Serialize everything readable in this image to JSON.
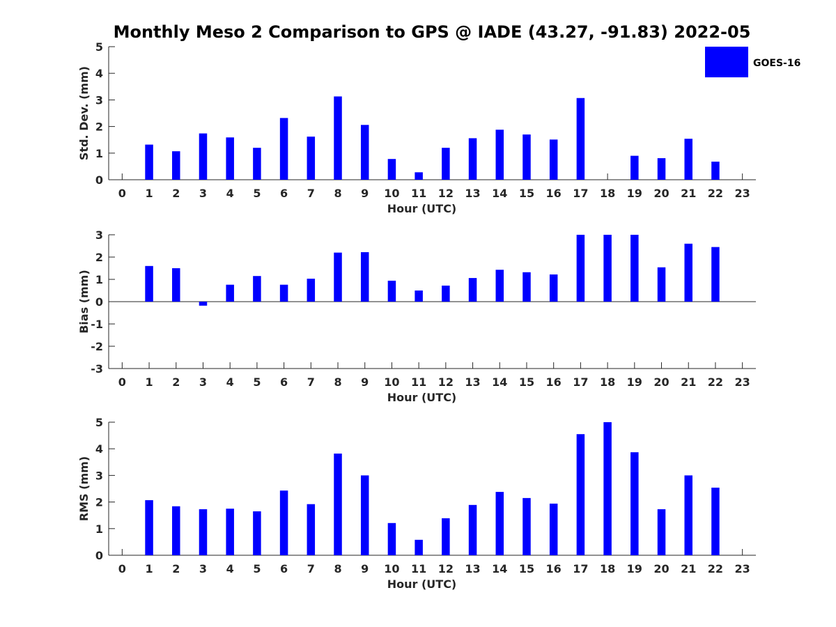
{
  "title": "Monthly Meso 2 Comparison to GPS @ IADE (43.27, -91.83) 2022-05",
  "legend": {
    "label": "GOES-16",
    "color": "#0000ff"
  },
  "chart_data": [
    {
      "type": "bar",
      "name": "std-dev",
      "xlabel": "Hour (UTC)",
      "ylabel": "Std. Dev. (mm)",
      "categories": [
        "0",
        "1",
        "2",
        "3",
        "4",
        "5",
        "6",
        "7",
        "8",
        "9",
        "10",
        "11",
        "12",
        "13",
        "14",
        "15",
        "16",
        "17",
        "18",
        "19",
        "20",
        "21",
        "22",
        "23"
      ],
      "series": [
        {
          "name": "GOES-16",
          "values": [
            null,
            1.32,
            1.07,
            1.74,
            1.59,
            1.2,
            2.32,
            1.62,
            3.13,
            2.06,
            0.78,
            0.28,
            1.2,
            1.56,
            1.88,
            1.7,
            1.51,
            3.07,
            null,
            0.9,
            0.81,
            1.54,
            0.68,
            null
          ]
        }
      ],
      "ylim": [
        0,
        5
      ],
      "yticks": [
        0,
        1,
        2,
        3,
        4,
        5
      ],
      "grid": false,
      "legend": "top-right"
    },
    {
      "type": "bar",
      "name": "bias",
      "xlabel": "Hour (UTC)",
      "ylabel": "Bias (mm)",
      "categories": [
        "0",
        "1",
        "2",
        "3",
        "4",
        "5",
        "6",
        "7",
        "8",
        "9",
        "10",
        "11",
        "12",
        "13",
        "14",
        "15",
        "16",
        "17",
        "18",
        "19",
        "20",
        "21",
        "22",
        "23"
      ],
      "series": [
        {
          "name": "GOES-16",
          "values": [
            null,
            1.6,
            1.5,
            -0.18,
            0.76,
            1.15,
            0.76,
            1.03,
            2.2,
            2.22,
            0.94,
            0.5,
            0.72,
            1.06,
            1.43,
            1.32,
            1.22,
            3.0,
            3.0,
            3.0,
            1.54,
            2.6,
            2.45,
            null
          ]
        }
      ],
      "ylim": [
        -3,
        3
      ],
      "yticks": [
        -3,
        -2,
        -1,
        0,
        1,
        2,
        3
      ],
      "grid": false
    },
    {
      "type": "bar",
      "name": "rms",
      "xlabel": "Hour (UTC)",
      "ylabel": "RMS (mm)",
      "categories": [
        "0",
        "1",
        "2",
        "3",
        "4",
        "5",
        "6",
        "7",
        "8",
        "9",
        "10",
        "11",
        "12",
        "13",
        "14",
        "15",
        "16",
        "17",
        "18",
        "19",
        "20",
        "21",
        "22",
        "23"
      ],
      "series": [
        {
          "name": "GOES-16",
          "values": [
            null,
            2.07,
            1.84,
            1.73,
            1.75,
            1.65,
            2.43,
            1.92,
            3.82,
            3.0,
            1.21,
            0.58,
            1.39,
            1.89,
            2.38,
            2.15,
            1.94,
            4.55,
            5.0,
            3.87,
            1.73,
            3.0,
            2.54,
            null
          ]
        }
      ],
      "ylim": [
        0,
        5
      ],
      "yticks": [
        0,
        1,
        2,
        3,
        4,
        5
      ],
      "grid": false
    }
  ]
}
